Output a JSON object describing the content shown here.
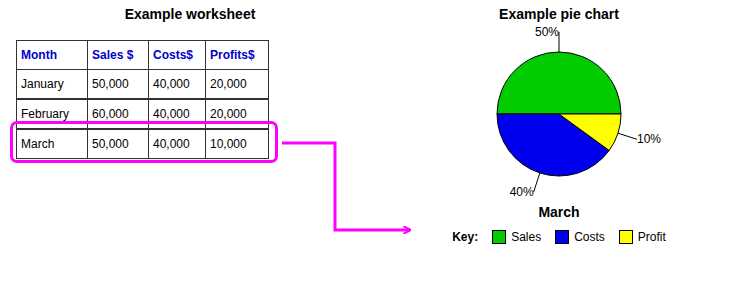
{
  "chart_data": [
    {
      "type": "table",
      "title": "Example worksheet",
      "columns": [
        "Month",
        "Sales $",
        "Costs$",
        "Profits$"
      ],
      "rows": [
        [
          "January",
          "50,000",
          "40,000",
          "20,000"
        ],
        [
          "February",
          "60,000",
          "40,000",
          "20,000"
        ],
        [
          "March",
          "50,000",
          "40,000",
          "10,000"
        ]
      ],
      "highlight": "March",
      "color": "#ff00ff"
    },
    {
      "type": "pie",
      "title": "Example pie chart",
      "subtitle": "March",
      "categories": [
        "Sales",
        "Costs",
        "Profit"
      ],
      "values": [
        50,
        40,
        10
      ],
      "value_labels": [
        "50%",
        "40%",
        "10%"
      ],
      "colors": [
        "#00cc00",
        "#0000ee",
        "#ffff00"
      ],
      "data_labels": true,
      "legend": "bottom",
      "legend_title": "Key:"
    }
  ]
}
